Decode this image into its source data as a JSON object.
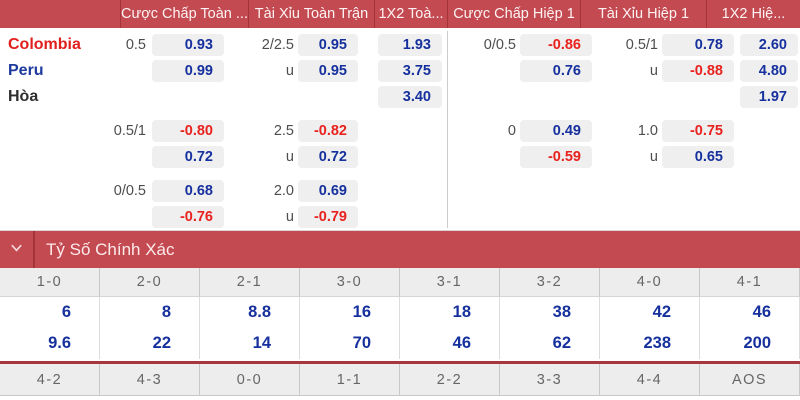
{
  "odds_table": {
    "market_headers": [
      "Cược Chấp Toàn ...",
      "Tài Xỉu Toàn Trận",
      "1X2 Toà...",
      "Cược Chấp Hiệp 1",
      "Tài Xỉu Hiệp 1",
      "1X2 Hiệ..."
    ],
    "rows": [
      {
        "team": "Colombia",
        "team_style": "red",
        "hcl": "0.5",
        "pl": "0.93",
        "oul": "2/2.5",
        "poul": "0.95",
        "x2l": "1.93",
        "hcr": "0/0.5",
        "pr": "-0.86",
        "our": "0.5/1",
        "pour": "0.78",
        "x2r": "2.60"
      },
      {
        "team": "Peru",
        "team_style": "blue",
        "pl": "0.99",
        "oul": "u",
        "poul": "0.95",
        "x2l": "3.75",
        "pr": "0.76",
        "our": "u",
        "pour": "-0.88",
        "x2r": "4.80"
      },
      {
        "team": "Hòa",
        "team_style": "dark",
        "x2l": "3.40",
        "x2r": "1.97"
      },
      {
        "hcl": "0.5/1",
        "pl": "-0.80",
        "oul": "2.5",
        "poul": "-0.82",
        "hcr": "0",
        "pr": "0.49",
        "our": "1.0",
        "pour": "-0.75"
      },
      {
        "pl": "0.72",
        "oul": "u",
        "poul": "0.72",
        "pr": "-0.59",
        "our": "u",
        "pour": "0.65"
      },
      {
        "hcl": "0/0.5",
        "pl": "0.68",
        "oul": "2.0",
        "poul": "0.69"
      },
      {
        "pl": "-0.76",
        "oul": "u",
        "poul": "-0.79"
      }
    ]
  },
  "correct_score": {
    "title": "Tỷ Số Chính Xác",
    "chevron_icon": "chevron-down",
    "top_scores": [
      "1-0",
      "2-0",
      "2-1",
      "3-0",
      "3-1",
      "3-2",
      "4-0",
      "4-1"
    ],
    "odds_row1": [
      "6",
      "8",
      "8.8",
      "16",
      "18",
      "38",
      "42",
      "46"
    ],
    "odds_row2": [
      "9.6",
      "22",
      "14",
      "70",
      "46",
      "62",
      "238",
      "200"
    ],
    "bottom_scores": [
      "4-2",
      "4-3",
      "0-0",
      "1-1",
      "2-2",
      "3-3",
      "4-4",
      "AOS"
    ]
  },
  "colors": {
    "bar_red": "#c44a52",
    "bar_divider": "#a2343a",
    "odd_blue": "#16309e",
    "odd_red": "#e8221e",
    "pill_bg": "#efefef",
    "team_red": "#e0201c",
    "team_blue": "#1e3a9d",
    "team_dark": "#2e2e2e",
    "label_grey": "#4d4d4d",
    "score_text_grey": "#666666",
    "score_header_bg": "#ededed",
    "rule_red": "#a5363c"
  }
}
